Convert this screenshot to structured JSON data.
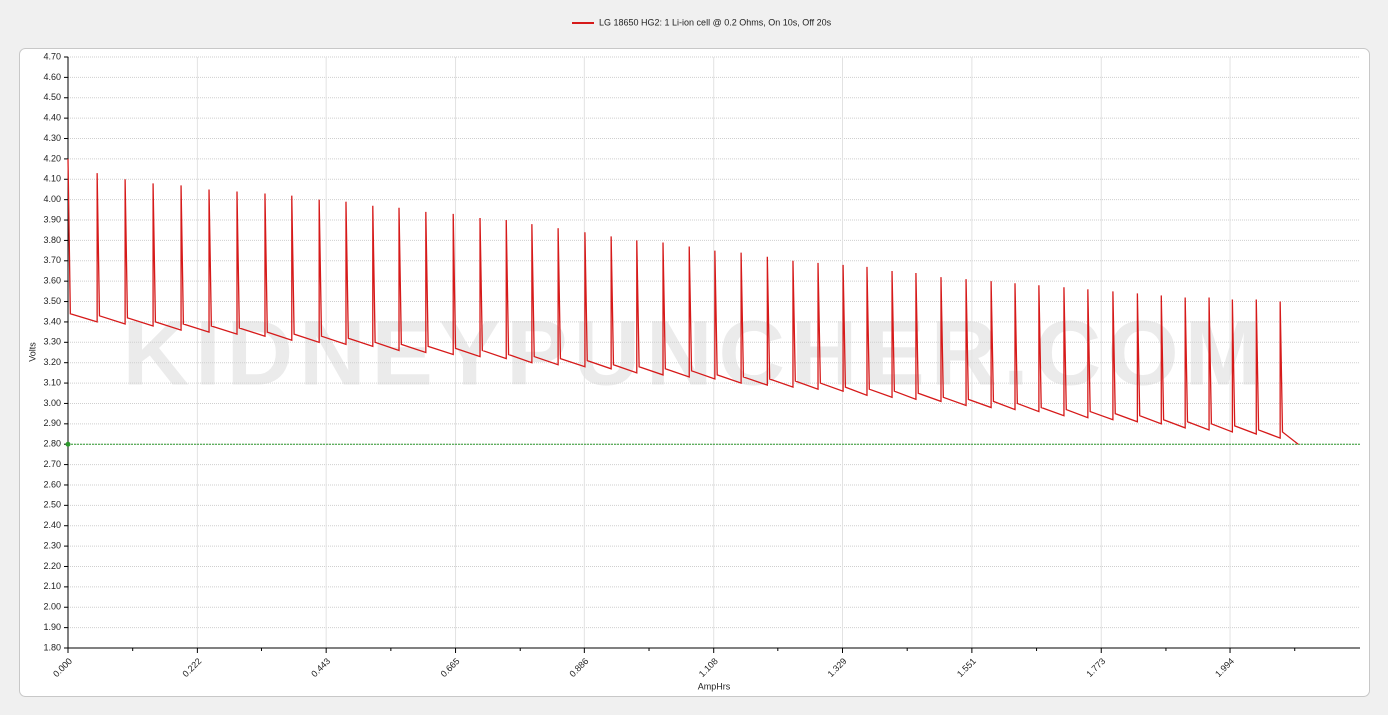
{
  "chart_data": {
    "type": "line",
    "watermark": "KIDNEYPUNCHER.COM",
    "xlabel": "AmpHrs",
    "ylabel": "Volts",
    "xlim": [
      0,
      2.217
    ],
    "ylim": [
      1.8,
      4.7
    ],
    "xticks": [
      {
        "value": 0,
        "label": "0.000"
      },
      0.222,
      0.443,
      0.665,
      0.886,
      1.108,
      1.329,
      1.551,
      1.773,
      1.994
    ],
    "xminor_ticks": [
      0.111,
      0.332,
      0.554,
      0.776,
      0.997,
      1.218,
      1.44,
      1.662,
      1.884,
      2.105
    ],
    "yticks": [
      {
        "value": 1.8,
        "label": "1.80"
      },
      {
        "value": 1.9,
        "label": "1.90"
      },
      {
        "value": 2.0,
        "label": "2.00"
      },
      {
        "value": 2.1,
        "label": "2.10"
      },
      {
        "value": 2.2,
        "label": "2.20"
      },
      {
        "value": 2.3,
        "label": "2.30"
      },
      {
        "value": 2.4,
        "label": "2.40"
      },
      {
        "value": 2.5,
        "label": "2.50"
      },
      {
        "value": 2.6,
        "label": "2.60"
      },
      {
        "value": 2.7,
        "label": "2.70"
      },
      {
        "value": 2.8,
        "label": "2.80"
      },
      {
        "value": 2.9,
        "label": "2.90"
      },
      {
        "value": 3.0,
        "label": "3.00"
      },
      {
        "value": 3.1,
        "label": "3.10"
      },
      {
        "value": 3.2,
        "label": "3.20"
      },
      {
        "value": 3.3,
        "label": "3.30"
      },
      {
        "value": 3.4,
        "label": "3.40"
      },
      {
        "value": 3.5,
        "label": "3.50"
      },
      {
        "value": 3.6,
        "label": "3.60"
      },
      {
        "value": 3.7,
        "label": "3.70"
      },
      {
        "value": 3.8,
        "label": "3.80"
      },
      {
        "value": 3.9,
        "label": "3.90"
      },
      {
        "value": 4.0,
        "label": "4.00"
      },
      {
        "value": 4.1,
        "label": "4.10"
      },
      {
        "value": 4.2,
        "label": "4.20"
      },
      {
        "value": 4.3,
        "label": "4.30"
      },
      {
        "value": 4.4,
        "label": "4.40"
      },
      {
        "value": 4.5,
        "label": "4.50"
      },
      {
        "value": 4.6,
        "label": "4.60"
      },
      {
        "value": 4.7,
        "label": "4.70"
      }
    ],
    "grid": true,
    "reference_line": {
      "value": 2.8,
      "color": "#2e9a2e"
    },
    "x": [
      0,
      0.004,
      0.05,
      0.05,
      0.054,
      0.098,
      0.098,
      0.102,
      0.146,
      0.146,
      0.15,
      0.194,
      0.194,
      0.198,
      0.242,
      0.242,
      0.246,
      0.29,
      0.29,
      0.294,
      0.338,
      0.338,
      0.342,
      0.384,
      0.384,
      0.388,
      0.431,
      0.431,
      0.435,
      0.477,
      0.477,
      0.481,
      0.523,
      0.523,
      0.527,
      0.568,
      0.568,
      0.572,
      0.614,
      0.614,
      0.618,
      0.661,
      0.661,
      0.665,
      0.707,
      0.707,
      0.711,
      0.752,
      0.752,
      0.756,
      0.796,
      0.796,
      0.8,
      0.841,
      0.841,
      0.845,
      0.887,
      0.887,
      0.891,
      0.932,
      0.932,
      0.936,
      0.976,
      0.976,
      0.98,
      1.021,
      1.021,
      1.025,
      1.066,
      1.066,
      1.07,
      1.11,
      1.11,
      1.114,
      1.155,
      1.155,
      1.159,
      1.2,
      1.2,
      1.204,
      1.244,
      1.244,
      1.248,
      1.287,
      1.287,
      1.291,
      1.33,
      1.33,
      1.334,
      1.371,
      1.371,
      1.375,
      1.414,
      1.414,
      1.418,
      1.455,
      1.455,
      1.459,
      1.498,
      1.498,
      1.502,
      1.541,
      1.541,
      1.545,
      1.584,
      1.584,
      1.588,
      1.625,
      1.625,
      1.629,
      1.666,
      1.666,
      1.67,
      1.709,
      1.709,
      1.713,
      1.75,
      1.75,
      1.754,
      1.793,
      1.793,
      1.797,
      1.835,
      1.835,
      1.839,
      1.876,
      1.876,
      1.88,
      1.917,
      1.917,
      1.921,
      1.958,
      1.958,
      1.962,
      1.998,
      1.998,
      2.002,
      2.039,
      2.039,
      2.043,
      2.08,
      2.08,
      2.084,
      2.111
    ],
    "series": [
      {
        "name": "LG 18650 HG2: 1 Li-ion cell @ 0.2 Ohms, On 10s, Off 20s",
        "color": "#d61a1a",
        "values": [
          4.2,
          3.44,
          3.4,
          4.13,
          3.43,
          3.39,
          4.1,
          3.42,
          3.38,
          4.08,
          3.4,
          3.36,
          4.07,
          3.39,
          3.35,
          4.05,
          3.38,
          3.34,
          4.04,
          3.37,
          3.33,
          4.03,
          3.35,
          3.31,
          4.02,
          3.34,
          3.3,
          4.0,
          3.33,
          3.29,
          3.99,
          3.32,
          3.28,
          3.97,
          3.3,
          3.26,
          3.96,
          3.29,
          3.25,
          3.94,
          3.28,
          3.24,
          3.93,
          3.27,
          3.23,
          3.91,
          3.26,
          3.22,
          3.9,
          3.24,
          3.2,
          3.88,
          3.23,
          3.19,
          3.86,
          3.22,
          3.18,
          3.84,
          3.21,
          3.17,
          3.82,
          3.19,
          3.15,
          3.8,
          3.18,
          3.14,
          3.79,
          3.17,
          3.13,
          3.77,
          3.16,
          3.12,
          3.75,
          3.14,
          3.1,
          3.74,
          3.13,
          3.09,
          3.72,
          3.12,
          3.08,
          3.7,
          3.11,
          3.07,
          3.69,
          3.1,
          3.06,
          3.68,
          3.08,
          3.04,
          3.67,
          3.07,
          3.03,
          3.65,
          3.06,
          3.02,
          3.64,
          3.05,
          3.01,
          3.62,
          3.03,
          2.99,
          3.61,
          3.02,
          2.98,
          3.6,
          3.01,
          2.97,
          3.59,
          3.0,
          2.96,
          3.58,
          2.98,
          2.94,
          3.57,
          2.97,
          2.93,
          3.56,
          2.96,
          2.92,
          3.55,
          2.95,
          2.91,
          3.54,
          2.94,
          2.9,
          3.53,
          2.92,
          2.88,
          3.52,
          2.91,
          2.87,
          3.52,
          2.9,
          2.86,
          3.51,
          2.89,
          2.85,
          3.51,
          2.87,
          2.83,
          3.5,
          2.86,
          2.8
        ]
      }
    ]
  }
}
